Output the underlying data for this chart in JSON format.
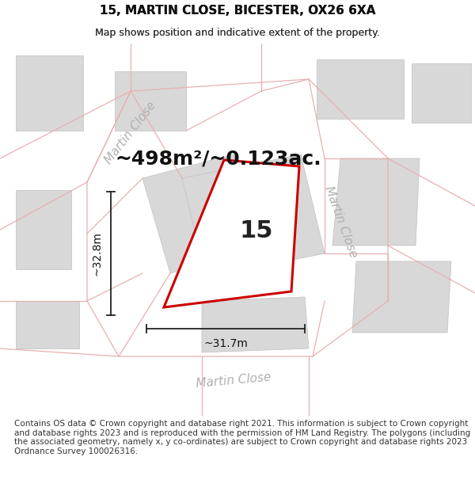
{
  "title": "15, MARTIN CLOSE, BICESTER, OX26 6XA",
  "subtitle": "Map shows position and indicative extent of the property.",
  "footer": "Contains OS data © Crown copyright and database right 2021. This information is subject to Crown copyright and database rights 2023 and is reproduced with the permission of HM Land Registry. The polygons (including the associated geometry, namely x, y co-ordinates) are subject to Crown copyright and database rights 2023 Ordnance Survey 100026316.",
  "area_label": "~498m²/~0.123ac.",
  "width_label": "~31.7m",
  "height_label": "~32.8m",
  "plot_number": "15",
  "map_bg": "#f2f0f0",
  "road_fill": "#ffffff",
  "building_fill": "#d8d8d8",
  "building_edge": "#c0c0c0",
  "parcel_line_color": "#e8b0b0",
  "plot_outline_color": "#cc0000",
  "dim_line_color": "#222222",
  "street_label_color": "#b0b0b0",
  "title_fontsize": 11,
  "subtitle_fontsize": 9,
  "footer_fontsize": 7.5,
  "area_label_fontsize": 18,
  "plot_number_fontsize": 22,
  "street_label_fontsize": 11,
  "dim_fontsize": 10
}
